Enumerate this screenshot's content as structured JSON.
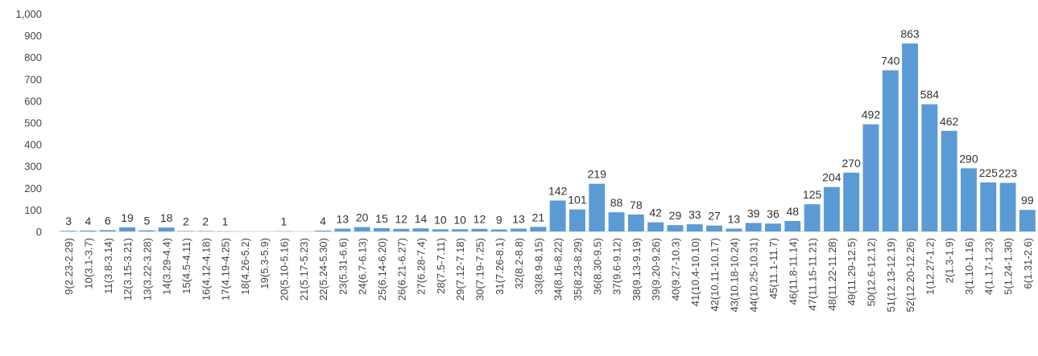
{
  "chart_data": {
    "type": "bar",
    "categories": [
      "9(2.23-2.29)",
      "10(3.1-3.7)",
      "11(3.8-3.14)",
      "12(3.15-3.21)",
      "13(3.22-3.28)",
      "14(3.29-4.4)",
      "15(4.5-4.11)",
      "16(4.12-4.18)",
      "17(4.19-4.25)",
      "18(4.26-5.2)",
      "19(5.3-5.9)",
      "20(5.10-5.16)",
      "21(5.17-5.23)",
      "22(5.24-5.30)",
      "23(5.31-6.6)",
      "24(6.7-6.13)",
      "25(6.14-6.20)",
      "26(6.21-6.27)",
      "27(6.28-7.4)",
      "28(7.5-7.11)",
      "29(7.12-7.18)",
      "30(7.19-7.25)",
      "31(7.26-8.1)",
      "32(8.2-8.8)",
      "33(8.9-8.15)",
      "34(8.16-8.22)",
      "35(8.23-8.29)",
      "36(8.30-9.5)",
      "37(9.6-9.12)",
      "38(9.13-9.19)",
      "39(9.20-9.26)",
      "40(9.27-10.3)",
      "41(10.4-10.10)",
      "42(10.11-10.17)",
      "43(10.18-10.24)",
      "44(10.25-10.31)",
      "45(11.1-11.7)",
      "46(11.8-11.14)",
      "47(11.15-11.21)",
      "48(11.22-11.28)",
      "49(11.29-12.5)",
      "50(12.6-12.12)",
      "51(12.13-12.19)",
      "52(12.20-12.26)",
      "1(12.27-1.2)",
      "2(1.3-1.9)",
      "3(1.10-1.16)",
      "4(1.17-1.23)",
      "5(1.24-1.30)",
      "6(1.31-2.6)"
    ],
    "values": [
      3,
      4,
      6,
      19,
      5,
      18,
      2,
      2,
      1,
      null,
      null,
      1,
      null,
      4,
      13,
      20,
      15,
      12,
      14,
      10,
      10,
      12,
      9,
      13,
      21,
      142,
      101,
      219,
      88,
      78,
      42,
      29,
      33,
      27,
      13,
      39,
      36,
      48,
      125,
      204,
      270,
      492,
      740,
      863,
      584,
      462,
      290,
      225,
      223,
      99
    ],
    "color": "#5b9bd5",
    "ylim": [
      0,
      1000
    ],
    "yticks": [
      0,
      100,
      200,
      300,
      400,
      500,
      600,
      700,
      800,
      900,
      {
        "value": 1000,
        "label": "1,000"
      }
    ],
    "grid": false
  }
}
